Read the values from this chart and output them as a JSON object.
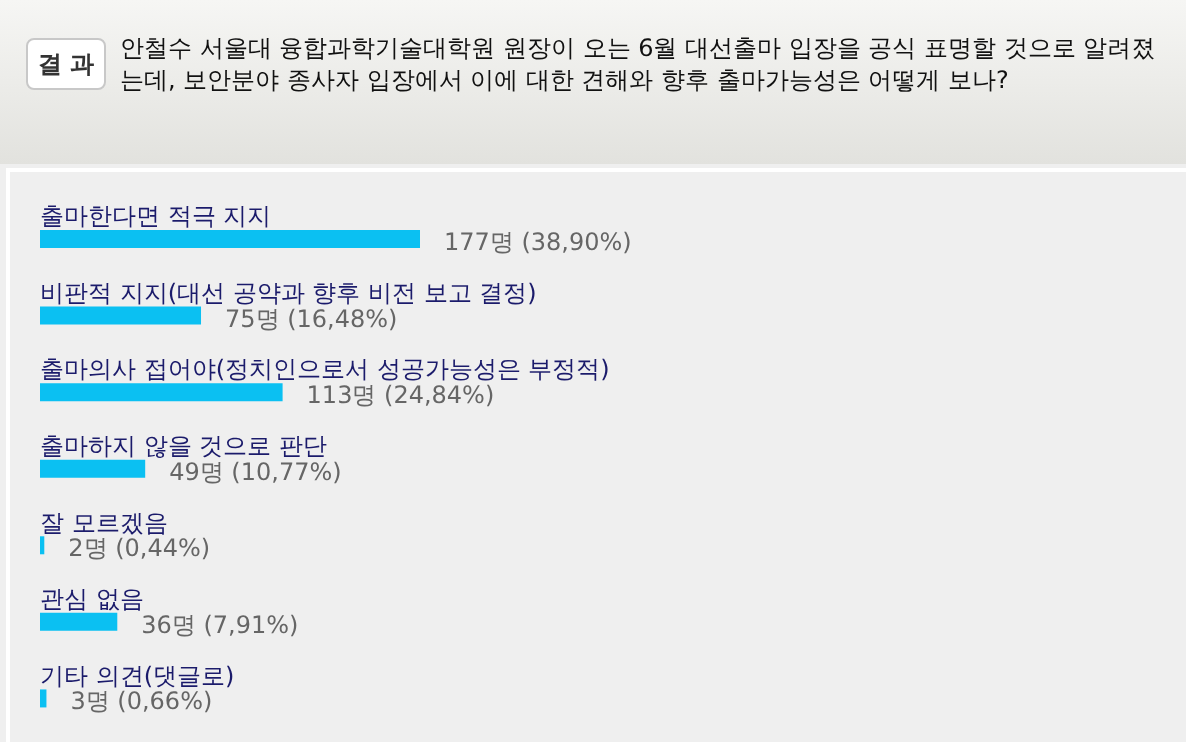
{
  "chart_data": {
    "type": "bar",
    "orientation": "horizontal",
    "title": "결 과",
    "subtitle": "안철수 서울대 융합과학기술대학원 원장이 오는 6월 대선출마 입장을 공식 표명할 것으로 알려졌는데, 보안분야 종사자 입장에서 이에 대한 견해와 향후 출마가능성은 어떻게 보나?",
    "categories": [
      "출마한다면 적극 지지",
      "비판적 지지(대선 공약과 향후 비전 보고 결정)",
      "출마의사 접어야(정치인으로서 성공가능성은 부정적)",
      "출마하지 않을 것으로 판단",
      "잘 모르겠음",
      "관심 없음",
      "기타 의견(댓글로)"
    ],
    "values": [
      177,
      75,
      113,
      49,
      2,
      36,
      3
    ],
    "value_labels": [
      "177명 (38,90%)",
      "75명 (16,48%)",
      "113명 (24,84%)",
      "49명 (10,77%)",
      "2명 (0,44%)",
      "36명 (7,91%)",
      "3명 (0,66%)"
    ],
    "color": "#0bc0f2"
  }
}
